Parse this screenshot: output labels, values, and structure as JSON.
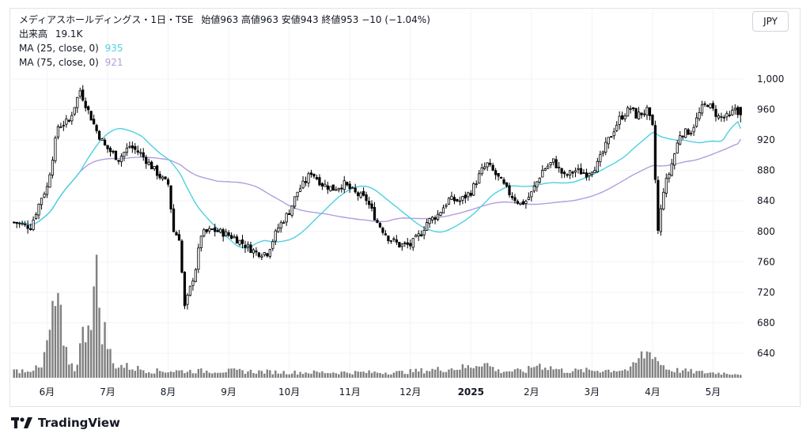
{
  "legend": {
    "title": "メディアスホールディングス・1日・TSE",
    "ohlc": "始値963  高値963  安値943  終値953  −10 (−1.04%)",
    "volume_label": "出来高",
    "volume_value": "19.1K",
    "ma1_label": "MA (25, close, 0)",
    "ma1_value": "935",
    "ma2_label": "MA (75, close, 0)",
    "ma2_value": "921"
  },
  "currency_button": "JPY",
  "brand": "TradingView",
  "colors": {
    "candle": "#000000",
    "ma25": "#4dd0e1",
    "ma75": "#b39ddb",
    "volume": "#808080",
    "grid": "#f0f3fa"
  },
  "chart_data": {
    "type": "candlestick",
    "y_axis": {
      "min": 600,
      "max": 1010,
      "ticks": [
        "1,000",
        "960",
        "920",
        "880",
        "840",
        "800",
        "760",
        "720",
        "680",
        "640"
      ],
      "tick_values": [
        1000,
        960,
        920,
        880,
        840,
        800,
        760,
        720,
        680,
        640
      ]
    },
    "x_axis": {
      "labels": [
        "6月",
        "7月",
        "8月",
        "9月",
        "10月",
        "11月",
        "12月",
        "2025",
        "2月",
        "3月",
        "4月",
        "5月"
      ]
    },
    "month_start_index": [
      12,
      34,
      56,
      78,
      100,
      122,
      144,
      166,
      188,
      210,
      232,
      254
    ],
    "bar_count": 265,
    "price_keypoints": [
      [
        0,
        812
      ],
      [
        6,
        806
      ],
      [
        10,
        845
      ],
      [
        12,
        858
      ],
      [
        16,
        938
      ],
      [
        20,
        945
      ],
      [
        24,
        985
      ],
      [
        27,
        958
      ],
      [
        30,
        932
      ],
      [
        33,
        912
      ],
      [
        38,
        895
      ],
      [
        42,
        912
      ],
      [
        46,
        902
      ],
      [
        50,
        885
      ],
      [
        54,
        868
      ],
      [
        56,
        862
      ],
      [
        58,
        800
      ],
      [
        60,
        792
      ],
      [
        62,
        700
      ],
      [
        64,
        725
      ],
      [
        66,
        752
      ],
      [
        68,
        796
      ],
      [
        72,
        802
      ],
      [
        76,
        798
      ],
      [
        80,
        792
      ],
      [
        84,
        782
      ],
      [
        88,
        772
      ],
      [
        92,
        772
      ],
      [
        96,
        805
      ],
      [
        100,
        826
      ],
      [
        103,
        852
      ],
      [
        106,
        866
      ],
      [
        108,
        878
      ],
      [
        112,
        862
      ],
      [
        116,
        856
      ],
      [
        120,
        862
      ],
      [
        124,
        850
      ],
      [
        128,
        842
      ],
      [
        132,
        812
      ],
      [
        136,
        792
      ],
      [
        140,
        782
      ],
      [
        144,
        782
      ],
      [
        148,
        798
      ],
      [
        150,
        812
      ],
      [
        154,
        822
      ],
      [
        158,
        842
      ],
      [
        162,
        840
      ],
      [
        166,
        852
      ],
      [
        170,
        880
      ],
      [
        172,
        888
      ],
      [
        176,
        870
      ],
      [
        180,
        850
      ],
      [
        184,
        836
      ],
      [
        186,
        840
      ],
      [
        188,
        850
      ],
      [
        192,
        880
      ],
      [
        196,
        892
      ],
      [
        200,
        872
      ],
      [
        204,
        880
      ],
      [
        208,
        876
      ],
      [
        212,
        888
      ],
      [
        216,
        920
      ],
      [
        220,
        948
      ],
      [
        224,
        962
      ],
      [
        226,
        952
      ],
      [
        230,
        958
      ],
      [
        232,
        936
      ],
      [
        234,
        800
      ],
      [
        236,
        855
      ],
      [
        238,
        876
      ],
      [
        242,
        928
      ],
      [
        246,
        932
      ],
      [
        250,
        962
      ],
      [
        252,
        968
      ],
      [
        256,
        950
      ],
      [
        260,
        950
      ],
      [
        262,
        962
      ],
      [
        264,
        953
      ]
    ],
    "volume_keypoints": [
      [
        0,
        5
      ],
      [
        10,
        7
      ],
      [
        16,
        60
      ],
      [
        18,
        20
      ],
      [
        22,
        6
      ],
      [
        30,
        70
      ],
      [
        32,
        40
      ],
      [
        36,
        10
      ],
      [
        50,
        5
      ],
      [
        80,
        5
      ],
      [
        100,
        4
      ],
      [
        120,
        4
      ],
      [
        140,
        4
      ],
      [
        166,
        8
      ],
      [
        170,
        12
      ],
      [
        176,
        5
      ],
      [
        186,
        5
      ],
      [
        190,
        10
      ],
      [
        200,
        5
      ],
      [
        224,
        6
      ],
      [
        228,
        16
      ],
      [
        232,
        20
      ],
      [
        234,
        12
      ],
      [
        238,
        6
      ],
      [
        250,
        4
      ],
      [
        264,
        3
      ]
    ],
    "ma25_last": 935,
    "ma75_last": 921
  }
}
